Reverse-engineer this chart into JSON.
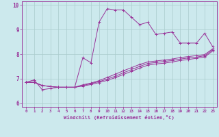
{
  "xlabel": "Windchill (Refroidissement éolien,°C)",
  "bg_color": "#cce9ed",
  "line_color": "#993399",
  "grid_color": "#aacccc",
  "xlim": [
    -0.5,
    23.5
  ],
  "ylim": [
    5.85,
    10.15
  ],
  "xticks": [
    0,
    1,
    2,
    3,
    4,
    5,
    6,
    7,
    8,
    9,
    10,
    11,
    12,
    13,
    14,
    15,
    16,
    17,
    18,
    19,
    20,
    21,
    22,
    23
  ],
  "yticks": [
    6,
    7,
    8,
    9,
    10
  ],
  "series1_x": [
    0,
    1,
    2,
    3,
    4,
    5,
    6,
    7,
    8,
    9,
    10,
    11,
    12,
    13,
    14,
    15,
    16,
    17,
    18,
    19,
    20,
    21,
    22,
    23
  ],
  "series1_y": [
    6.85,
    6.95,
    6.55,
    6.6,
    6.65,
    6.65,
    6.65,
    7.85,
    7.65,
    9.3,
    9.85,
    9.8,
    9.8,
    9.5,
    9.2,
    9.3,
    8.8,
    8.85,
    8.9,
    8.45,
    8.45,
    8.45,
    8.85,
    8.3
  ],
  "series2_x": [
    0,
    1,
    2,
    3,
    4,
    5,
    6,
    7,
    8,
    9,
    10,
    11,
    12,
    13,
    14,
    15,
    16,
    17,
    18,
    19,
    20,
    21,
    22,
    23
  ],
  "series2_y": [
    6.85,
    6.85,
    6.72,
    6.68,
    6.65,
    6.65,
    6.65,
    6.75,
    6.82,
    6.92,
    7.05,
    7.18,
    7.32,
    7.45,
    7.58,
    7.68,
    7.72,
    7.76,
    7.8,
    7.86,
    7.9,
    7.94,
    7.98,
    8.22
  ],
  "series3_x": [
    0,
    1,
    2,
    3,
    4,
    5,
    6,
    7,
    8,
    9,
    10,
    11,
    12,
    13,
    14,
    15,
    16,
    17,
    18,
    19,
    20,
    21,
    22,
    23
  ],
  "series3_y": [
    6.85,
    6.85,
    6.72,
    6.68,
    6.65,
    6.65,
    6.65,
    6.72,
    6.8,
    6.88,
    6.98,
    7.1,
    7.24,
    7.37,
    7.5,
    7.62,
    7.66,
    7.7,
    7.74,
    7.8,
    7.84,
    7.88,
    7.93,
    8.18
  ],
  "series4_x": [
    0,
    1,
    2,
    3,
    4,
    5,
    6,
    7,
    8,
    9,
    10,
    11,
    12,
    13,
    14,
    15,
    16,
    17,
    18,
    19,
    20,
    21,
    22,
    23
  ],
  "series4_y": [
    6.85,
    6.85,
    6.72,
    6.68,
    6.65,
    6.65,
    6.65,
    6.7,
    6.76,
    6.84,
    6.93,
    7.04,
    7.17,
    7.3,
    7.43,
    7.55,
    7.6,
    7.63,
    7.68,
    7.74,
    7.78,
    7.83,
    7.88,
    8.13
  ]
}
